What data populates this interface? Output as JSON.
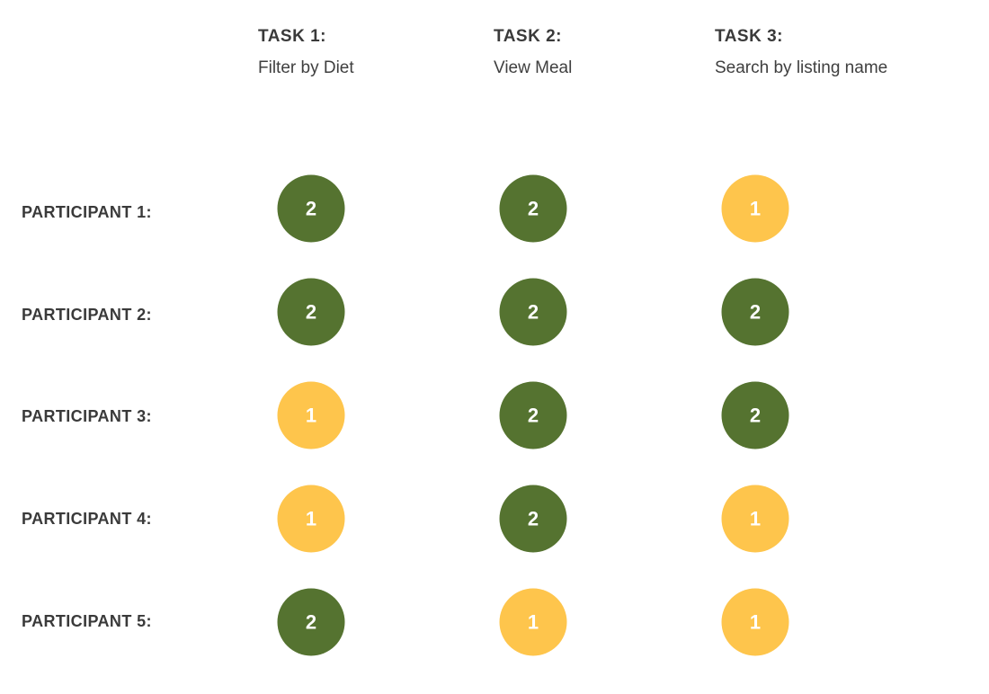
{
  "colors": {
    "score_2": "#557330",
    "score_1": "#fec54c"
  },
  "chart_data": {
    "type": "table",
    "columns": [
      {
        "title": "TASK 1:",
        "name": "Filter by Diet"
      },
      {
        "title": "TASK 2:",
        "name": "View Meal"
      },
      {
        "title": "TASK 3:",
        "name": "Search by listing name"
      }
    ],
    "rows": [
      {
        "label": "PARTICIPANT 1:",
        "values": [
          2,
          2,
          1
        ]
      },
      {
        "label": "PARTICIPANT 2:",
        "values": [
          2,
          2,
          2
        ]
      },
      {
        "label": "PARTICIPANT 3:",
        "values": [
          1,
          2,
          2
        ]
      },
      {
        "label": "PARTICIPANT 4:",
        "values": [
          1,
          2,
          1
        ]
      },
      {
        "label": "PARTICIPANT 5:",
        "values": [
          2,
          1,
          1
        ]
      }
    ]
  }
}
